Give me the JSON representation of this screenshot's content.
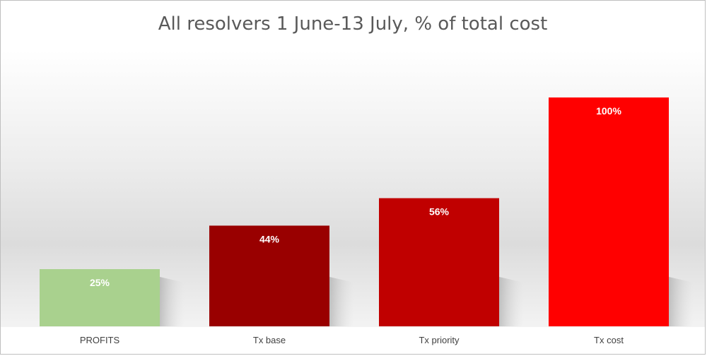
{
  "chart_data": {
    "type": "bar",
    "title": "All resolvers 1 June-13 July, % of total cost",
    "categories": [
      "PROFITS",
      "Tx base",
      "Tx priority",
      "Tx cost"
    ],
    "values": [
      25,
      44,
      56,
      100
    ],
    "data_labels": [
      "25%",
      "44%",
      "56%",
      "100%"
    ],
    "colors": [
      "#a9d18e",
      "#990000",
      "#c00000",
      "#ff0000"
    ],
    "ylim": [
      0,
      100
    ],
    "ylabel": "",
    "xlabel": "",
    "grid": false,
    "legend": "none",
    "data_label_color": "#ffffff",
    "tick_label_color": "#404040"
  }
}
